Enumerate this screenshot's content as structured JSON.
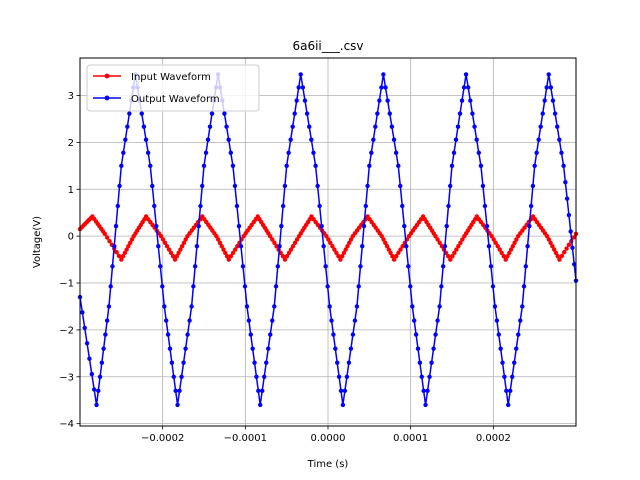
{
  "chart_data": {
    "type": "line",
    "title": "6a6ii___.csv",
    "xlabel": "Time (s)",
    "ylabel": "Voltage(V)",
    "xlim": [
      -0.0003,
      0.0003
    ],
    "ylim": [
      -4.05,
      3.8
    ],
    "xticks": [
      -0.0002,
      -0.0001,
      0.0,
      0.0001,
      0.0002
    ],
    "xtick_labels": [
      "−0.0002",
      "−0.0001",
      "0.0000",
      "0.0001",
      "0.0002"
    ],
    "yticks": [
      -4,
      -3,
      -2,
      -1,
      0,
      1,
      2,
      3
    ],
    "ytick_labels": [
      "−4",
      "−3",
      "−2",
      "−1",
      "0",
      "1",
      "2",
      "3"
    ],
    "grid": true,
    "legend_position": "top-left",
    "series": [
      {
        "name": "Input Waveform",
        "color": "#ff0000",
        "marker": "dot",
        "x": [
          -0.0003,
          -0.000285,
          -0.00027,
          -0.00025,
          -0.000235,
          -0.00022,
          -0.000202,
          -0.000185,
          -0.00017,
          -0.000152,
          -0.000135,
          -0.00012,
          -0.000102,
          -8.5e-05,
          -7e-05,
          -5.2e-05,
          -3.5e-05,
          -2e-05,
          -2e-06,
          1.5e-05,
          3e-05,
          4.8e-05,
          6.5e-05,
          8e-05,
          9.8e-05,
          0.000115,
          0.00013,
          0.000148,
          0.000165,
          0.00018,
          0.000198,
          0.000215,
          0.00023,
          0.000248,
          0.000265,
          0.00028,
          0.0003
        ],
        "y": [
          0.15,
          0.42,
          0.05,
          -0.5,
          0.0,
          0.42,
          0.0,
          -0.5,
          0.0,
          0.42,
          0.0,
          -0.5,
          0.0,
          0.42,
          0.0,
          -0.5,
          0.0,
          0.42,
          0.0,
          -0.5,
          0.0,
          0.42,
          0.0,
          -0.5,
          0.0,
          0.42,
          0.0,
          -0.5,
          0.0,
          0.42,
          0.0,
          -0.5,
          0.0,
          0.42,
          0.0,
          -0.5,
          0.05
        ]
      },
      {
        "name": "Output Waveform",
        "color": "#0000ff",
        "marker": "dot",
        "x": [
          -0.0003,
          -0.00028,
          -0.000265,
          -0.00025,
          -0.000233,
          -0.000215,
          -0.000198,
          -0.000182,
          -0.000165,
          -0.00015,
          -0.000133,
          -0.000115,
          -9.8e-05,
          -8.2e-05,
          -6.5e-05,
          -5e-05,
          -3.3e-05,
          -1.5e-05,
          2e-06,
          1.8e-05,
          3.5e-05,
          5e-05,
          6.7e-05,
          8.5e-05,
          0.000102,
          0.000118,
          0.000135,
          0.00015,
          0.000167,
          0.000185,
          0.000202,
          0.000218,
          0.000235,
          0.00025,
          0.000267,
          0.000285,
          0.0003
        ],
        "y": [
          -1.3,
          -3.6,
          -1.5,
          1.5,
          3.45,
          1.5,
          -1.5,
          -3.6,
          -1.5,
          1.5,
          3.45,
          1.5,
          -1.5,
          -3.6,
          -1.5,
          1.5,
          3.45,
          1.5,
          -1.5,
          -3.6,
          -1.5,
          1.5,
          3.45,
          1.5,
          -1.5,
          -3.6,
          -1.5,
          1.5,
          3.45,
          1.5,
          -1.5,
          -3.6,
          -1.5,
          1.5,
          3.45,
          1.5,
          -0.95
        ]
      }
    ]
  }
}
